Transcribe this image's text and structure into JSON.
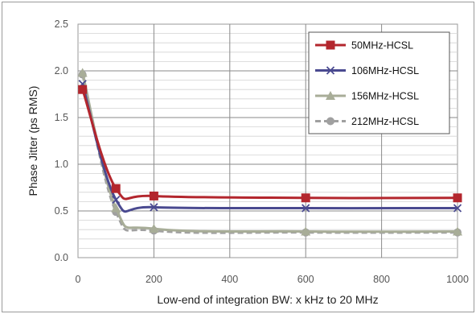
{
  "chart_data": {
    "type": "line",
    "title": "",
    "xlabel": "Low-end of integration BW: x kHz to 20 MHz",
    "ylabel": "Phase Jitter (ps RMS)",
    "xlim": [
      0,
      1000
    ],
    "ylim": [
      0,
      2.5
    ],
    "x_ticks": [
      "0",
      "200",
      "400",
      "600",
      "800",
      "1000"
    ],
    "y_ticks": [
      "0.0",
      "0.5",
      "1.0",
      "1.5",
      "2.0",
      "2.5"
    ],
    "grid": true,
    "legend_position": "top-right",
    "series": [
      {
        "name": "50MHz-HCSL",
        "color": "#b3262d",
        "marker": "square",
        "dash": false,
        "x": [
          12,
          100,
          200,
          600,
          1000
        ],
        "y": [
          1.8,
          0.74,
          0.66,
          0.64,
          0.64
        ]
      },
      {
        "name": "106MHz-HCSL",
        "color": "#4a4a90",
        "marker": "x",
        "dash": false,
        "x": [
          12,
          100,
          200,
          600,
          1000
        ],
        "y": [
          1.86,
          0.62,
          0.54,
          0.53,
          0.53
        ]
      },
      {
        "name": "156MHz-HCSL",
        "color": "#a8ad98",
        "marker": "triangle",
        "dash": false,
        "x": [
          12,
          100,
          200,
          600,
          1000
        ],
        "y": [
          1.98,
          0.53,
          0.31,
          0.28,
          0.28
        ]
      },
      {
        "name": "212MHz-HCSL",
        "color": "#a0a0a0",
        "marker": "circle",
        "dash": true,
        "x": [
          12,
          100,
          200,
          600,
          1000
        ],
        "y": [
          1.96,
          0.49,
          0.29,
          0.27,
          0.27
        ]
      }
    ]
  }
}
